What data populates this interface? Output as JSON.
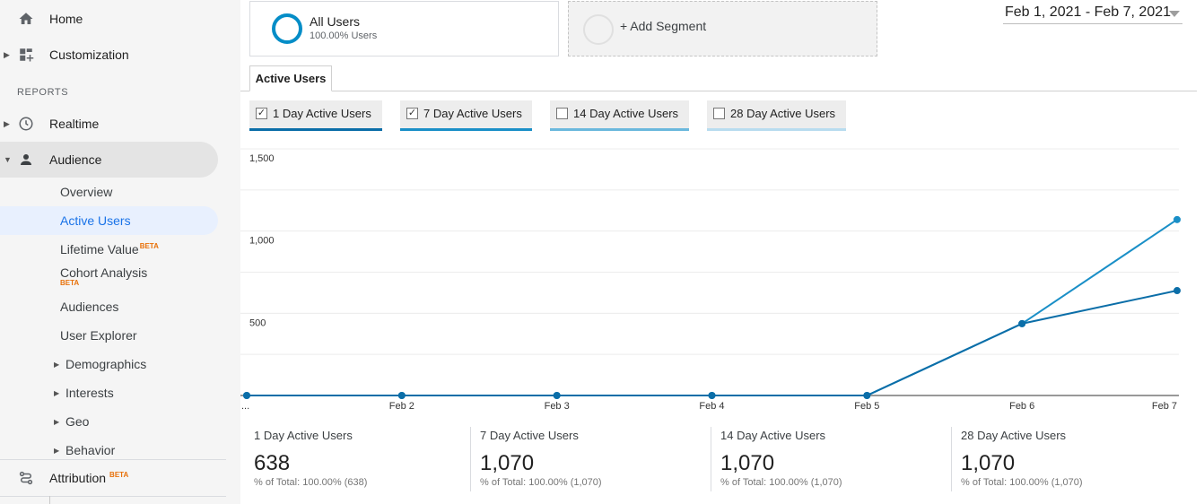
{
  "sidebar": {
    "home": "Home",
    "customization": "Customization",
    "reports_label": "REPORTS",
    "realtime": "Realtime",
    "audience": "Audience",
    "audience_items": {
      "overview": "Overview",
      "active_users": "Active Users",
      "lifetime_value": "Lifetime Value",
      "cohort_analysis": "Cohort Analysis",
      "audiences": "Audiences",
      "user_explorer": "User Explorer",
      "demographics": "Demographics",
      "interests": "Interests",
      "geo": "Geo",
      "behavior": "Behavior"
    },
    "beta": "BETA",
    "attribution": "Attribution"
  },
  "segments": {
    "primary_name": "All Users",
    "primary_sub": "100.00% Users",
    "add_label": "+ Add Segment"
  },
  "date_range": "Feb 1, 2021 - Feb 7, 2021",
  "tabs": {
    "active": "Active Users"
  },
  "metric_tabs": [
    {
      "label": "1 Day Active Users",
      "checked": true,
      "color": "#0b6ea8"
    },
    {
      "label": "7 Day Active Users",
      "checked": true,
      "color": "#1a8fc7"
    },
    {
      "label": "14 Day Active Users",
      "checked": false,
      "color": "#6bb8dd"
    },
    {
      "label": "28 Day Active Users",
      "checked": false,
      "color": "#b8dcef"
    }
  ],
  "chart_data": {
    "type": "line",
    "categories": [
      "...",
      "Feb 2",
      "Feb 3",
      "Feb 4",
      "Feb 5",
      "Feb 6",
      "Feb 7"
    ],
    "y_ticks": [
      "1,500",
      "1,000",
      "500"
    ],
    "ylim": [
      0,
      1500
    ],
    "grid": true,
    "series": [
      {
        "name": "1 Day Active Users",
        "color": "#0b6ea8",
        "values": [
          0,
          0,
          0,
          0,
          0,
          437,
          638
        ]
      },
      {
        "name": "7 Day Active Users",
        "color": "#1a8fc7",
        "values": [
          0,
          0,
          0,
          0,
          0,
          437,
          1070
        ]
      }
    ]
  },
  "stats": [
    {
      "name": "1 Day Active Users",
      "value": "638",
      "pct": "% of Total: 100.00% (638)"
    },
    {
      "name": "7 Day Active Users",
      "value": "1,070",
      "pct": "% of Total: 100.00% (1,070)"
    },
    {
      "name": "14 Day Active Users",
      "value": "1,070",
      "pct": "% of Total: 100.00% (1,070)"
    },
    {
      "name": "28 Day Active Users",
      "value": "1,070",
      "pct": "% of Total: 100.00% (1,070)"
    }
  ]
}
